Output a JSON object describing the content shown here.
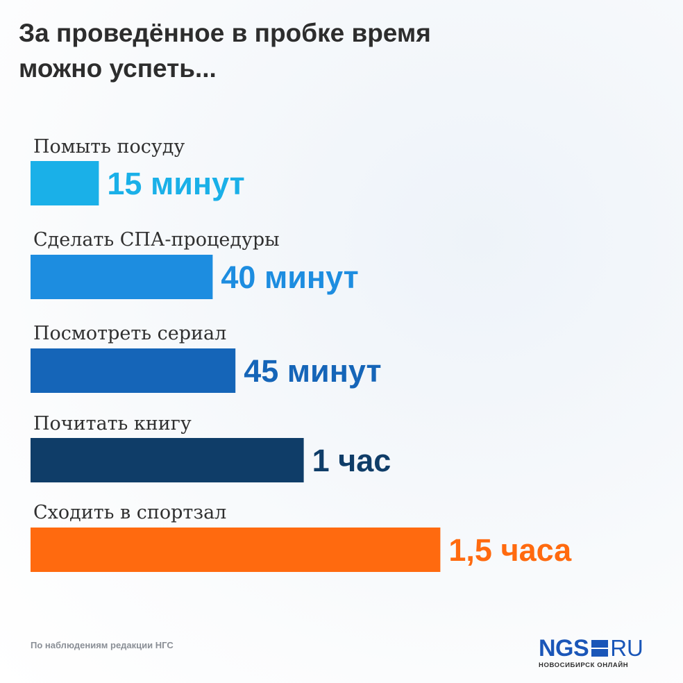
{
  "title_lines": [
    "За проведённое в пробке время",
    "можно успеть..."
  ],
  "source_note": "По наблюдениям редакции НГС",
  "logo": {
    "brand": "NGS",
    "tld": "RU",
    "subtitle": "НОВОСИБИРСК ОНЛАЙН",
    "color": "#1a56b8"
  },
  "chart_data": {
    "type": "bar",
    "orientation": "horizontal",
    "unit": "minutes",
    "categories": [
      "Помыть посуду",
      "Сделать СПА-процедуры",
      "Посмотреть сериал",
      "Почитать книгу",
      "Сходить в спортзал"
    ],
    "values": [
      15,
      40,
      45,
      60,
      90
    ],
    "value_labels": [
      "15 минут",
      "40 минут",
      "45 минут",
      "1 час",
      "1,5 часа"
    ],
    "colors": [
      "#1ab0e8",
      "#1d8de0",
      "#1565b8",
      "#0f3d68",
      "#ff6a0f"
    ],
    "value_label_colors": [
      "#1ab0e8",
      "#1d8de0",
      "#1565b8",
      "#0f3d68",
      "#ff6a0f"
    ],
    "title": "За проведённое в пробке время можно успеть...",
    "xlabel": "",
    "ylabel": "",
    "grid": false,
    "legend": "none"
  }
}
